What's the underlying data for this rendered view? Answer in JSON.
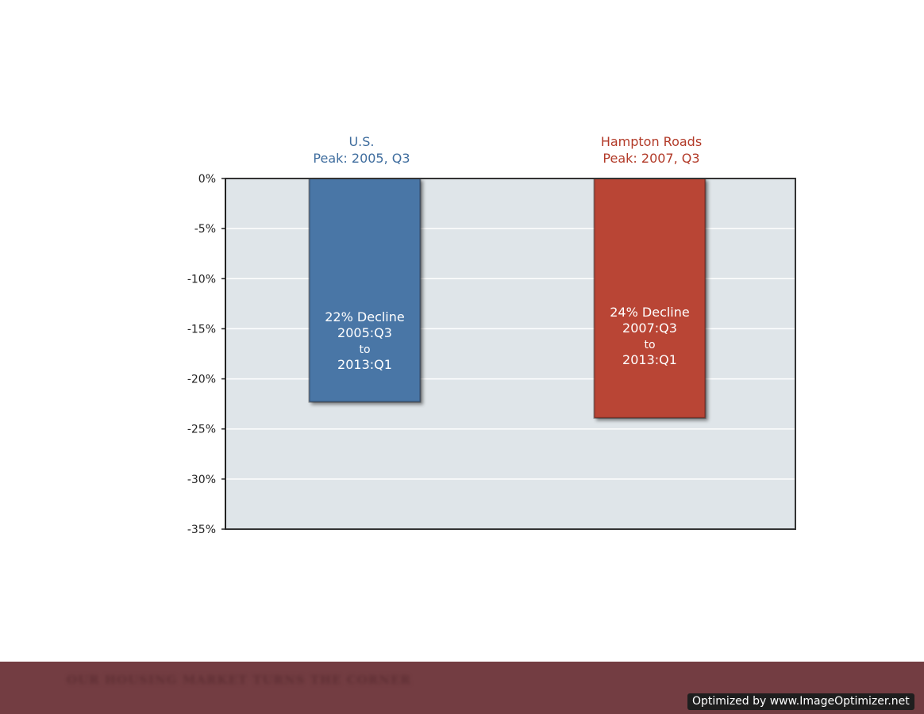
{
  "chart_data": {
    "type": "bar",
    "categories": [
      "U.S.",
      "Hampton Roads"
    ],
    "series": [
      {
        "values": [
          -22.3,
          -23.9
        ]
      }
    ],
    "category_headers": [
      {
        "line1": "U.S.",
        "line2": "Peak: 2005, Q3",
        "color": "#3f6d9e"
      },
      {
        "line1": "Hampton Roads",
        "line2": "Peak: 2007, Q3",
        "color": "#b23a28"
      }
    ],
    "bar_colors": [
      "#4a76a6",
      "#b94434"
    ],
    "bar_labels": [
      [
        "22% Decline",
        "2005:Q3",
        "to",
        "2013:Q1"
      ],
      [
        "24% Decline",
        "2007:Q3",
        "to",
        "2013:Q1"
      ]
    ],
    "ylim": [
      -35,
      0
    ],
    "yticks": [
      0,
      -5,
      -10,
      -15,
      -20,
      -25,
      -30,
      -35
    ],
    "ytick_labels": [
      "0%",
      "-5%",
      "-10%",
      "-15%",
      "-20%",
      "-25%",
      "-30%",
      "-35%"
    ],
    "grid": true,
    "plot_background": "#dfe5e9"
  },
  "footer": {
    "text": "OUR HOUSING MARKET TURNS THE CORNER",
    "color": "#733d42"
  },
  "watermark": {
    "text": "Optimized by www.ImageOptimizer.net"
  }
}
